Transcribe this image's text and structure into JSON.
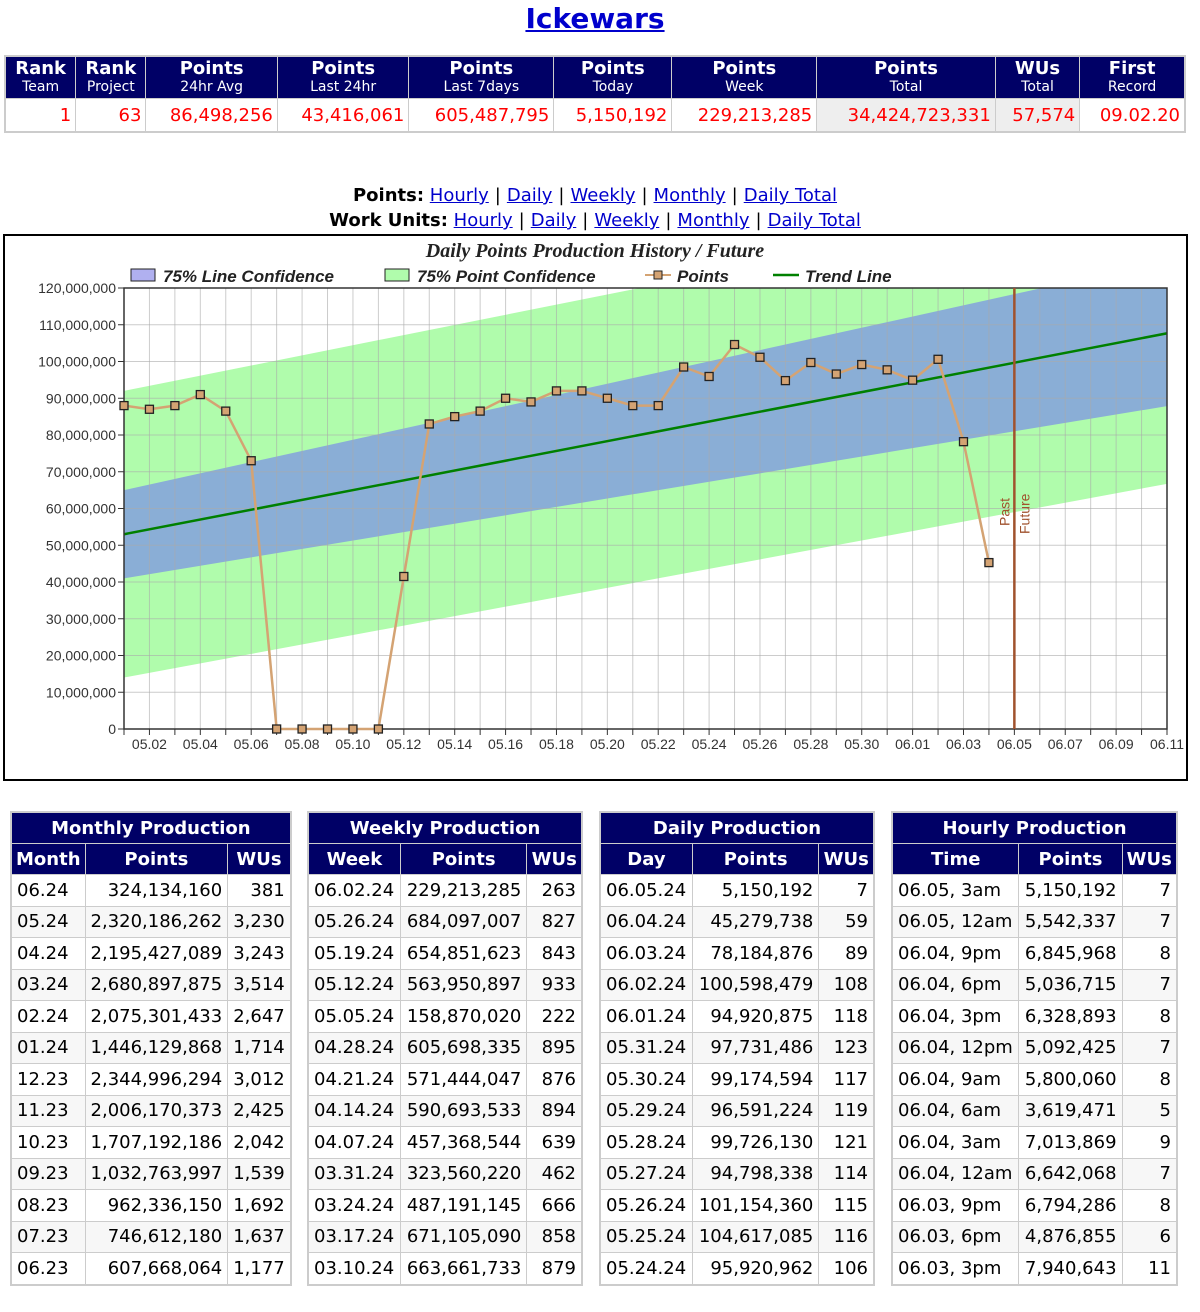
{
  "title": "Ickewars",
  "stats": {
    "headers": [
      [
        "Rank",
        "Team"
      ],
      [
        "Rank",
        "Project"
      ],
      [
        "Points",
        "24hr Avg"
      ],
      [
        "Points",
        "Last 24hr"
      ],
      [
        "Points",
        "Last 7days"
      ],
      [
        "Points",
        "Today"
      ],
      [
        "Points",
        "Week"
      ],
      [
        "Points",
        "Total"
      ],
      [
        "WUs",
        "Total"
      ],
      [
        "First",
        "Record"
      ]
    ],
    "values": [
      "1",
      "63",
      "86,498,256",
      "43,416,061",
      "605,487,795",
      "5,150,192",
      "229,213,285",
      "34,424,723,331",
      "57,574",
      "09.02.20"
    ]
  },
  "links": {
    "points_label": "Points:",
    "wu_label": "Work Units:",
    "items": [
      "Hourly",
      "Daily",
      "Weekly",
      "Monthly",
      "Daily Total"
    ],
    "sep": "|"
  },
  "chart_data": {
    "type": "line",
    "title": "Daily Points Production History / Future",
    "legend": [
      "75% Line Confidence",
      "75% Point Confidence",
      "Points",
      "Trend Line"
    ],
    "legend_placement": "top",
    "colors": {
      "line_conf": "#8aaed6",
      "line_conf_legend": "#b0b0f0",
      "point_conf": "#b0fcac",
      "points": "#d4a373",
      "trend": "#008000",
      "divider": "#a0522d"
    },
    "ylim": [
      0,
      120000000
    ],
    "yticks": [
      "0",
      "10,000,000",
      "20,000,000",
      "30,000,000",
      "40,000,000",
      "50,000,000",
      "60,000,000",
      "70,000,000",
      "80,000,000",
      "90,000,000",
      "100,000,000",
      "110,000,000",
      "120,000,000"
    ],
    "xrange": [
      "05.01",
      "06.12"
    ],
    "xtick_labels": [
      "05.02",
      "05.04",
      "05.06",
      "05.08",
      "05.10",
      "05.12",
      "05.14",
      "05.16",
      "05.18",
      "05.20",
      "05.22",
      "05.24",
      "05.26",
      "05.28",
      "05.30",
      "06.01",
      "06.03",
      "06.05",
      "06.07",
      "06.09",
      "06.11"
    ],
    "grid": true,
    "points": {
      "x": [
        "05.01",
        "05.02",
        "05.03",
        "05.04",
        "05.05",
        "05.06",
        "05.07",
        "05.08",
        "05.09",
        "05.10",
        "05.11",
        "05.12",
        "05.13",
        "05.14",
        "05.15",
        "05.16",
        "05.17",
        "05.18",
        "05.19",
        "05.20",
        "05.21",
        "05.22",
        "05.23",
        "05.24",
        "05.25",
        "05.26",
        "05.27",
        "05.28",
        "05.29",
        "05.30",
        "05.31",
        "06.01",
        "06.02",
        "06.03",
        "06.04"
      ],
      "y": [
        88000000,
        87000000,
        88000000,
        91000000,
        86500000,
        73000000,
        0,
        0,
        0,
        0,
        0,
        41500000,
        83000000,
        85000000,
        86500000,
        90000000,
        89000000,
        92000000,
        92000000,
        90000000,
        88000000,
        88000000,
        98500000,
        95920962,
        104617085,
        101154360,
        94798338,
        99726130,
        96591224,
        99174594,
        97731486,
        94920875,
        100598479,
        78184876,
        45279738
      ]
    },
    "trend_line": {
      "x": [
        "05.01",
        "06.12"
      ],
      "y": [
        53000000,
        109000000
      ]
    },
    "line_confidence": {
      "x": [
        "05.01",
        "06.12"
      ],
      "lower": [
        41000000,
        89000000
      ],
      "upper": [
        65000000,
        129000000
      ]
    },
    "point_confidence": {
      "x": [
        "05.01",
        "06.12"
      ],
      "lower": [
        14000000,
        68000000
      ],
      "upper": [
        92000000,
        150000000
      ]
    },
    "divider": {
      "x": "06.05",
      "labels": [
        "Past",
        "Future"
      ]
    }
  },
  "tables": [
    {
      "title": "Monthly Production",
      "headers": [
        "Month",
        "Points",
        "WUs"
      ],
      "rows": [
        [
          "06.24",
          "324,134,160",
          "381"
        ],
        [
          "05.24",
          "2,320,186,262",
          "3,230"
        ],
        [
          "04.24",
          "2,195,427,089",
          "3,243"
        ],
        [
          "03.24",
          "2,680,897,875",
          "3,514"
        ],
        [
          "02.24",
          "2,075,301,433",
          "2,647"
        ],
        [
          "01.24",
          "1,446,129,868",
          "1,714"
        ],
        [
          "12.23",
          "2,344,996,294",
          "3,012"
        ],
        [
          "11.23",
          "2,006,170,373",
          "2,425"
        ],
        [
          "10.23",
          "1,707,192,186",
          "2,042"
        ],
        [
          "09.23",
          "1,032,763,997",
          "1,539"
        ],
        [
          "08.23",
          "962,336,150",
          "1,692"
        ],
        [
          "07.23",
          "746,612,180",
          "1,637"
        ],
        [
          "06.23",
          "607,668,064",
          "1,177"
        ]
      ]
    },
    {
      "title": "Weekly Production",
      "headers": [
        "Week",
        "Points",
        "WUs"
      ],
      "rows": [
        [
          "06.02.24",
          "229,213,285",
          "263"
        ],
        [
          "05.26.24",
          "684,097,007",
          "827"
        ],
        [
          "05.19.24",
          "654,851,623",
          "843"
        ],
        [
          "05.12.24",
          "563,950,897",
          "933"
        ],
        [
          "05.05.24",
          "158,870,020",
          "222"
        ],
        [
          "04.28.24",
          "605,698,335",
          "895"
        ],
        [
          "04.21.24",
          "571,444,047",
          "876"
        ],
        [
          "04.14.24",
          "590,693,533",
          "894"
        ],
        [
          "04.07.24",
          "457,368,544",
          "639"
        ],
        [
          "03.31.24",
          "323,560,220",
          "462"
        ],
        [
          "03.24.24",
          "487,191,145",
          "666"
        ],
        [
          "03.17.24",
          "671,105,090",
          "858"
        ],
        [
          "03.10.24",
          "663,661,733",
          "879"
        ]
      ]
    },
    {
      "title": "Daily Production",
      "headers": [
        "Day",
        "Points",
        "WUs"
      ],
      "rows": [
        [
          "06.05.24",
          "5,150,192",
          "7"
        ],
        [
          "06.04.24",
          "45,279,738",
          "59"
        ],
        [
          "06.03.24",
          "78,184,876",
          "89"
        ],
        [
          "06.02.24",
          "100,598,479",
          "108"
        ],
        [
          "06.01.24",
          "94,920,875",
          "118"
        ],
        [
          "05.31.24",
          "97,731,486",
          "123"
        ],
        [
          "05.30.24",
          "99,174,594",
          "117"
        ],
        [
          "05.29.24",
          "96,591,224",
          "119"
        ],
        [
          "05.28.24",
          "99,726,130",
          "121"
        ],
        [
          "05.27.24",
          "94,798,338",
          "114"
        ],
        [
          "05.26.24",
          "101,154,360",
          "115"
        ],
        [
          "05.25.24",
          "104,617,085",
          "116"
        ],
        [
          "05.24.24",
          "95,920,962",
          "106"
        ]
      ]
    },
    {
      "title": "Hourly Production",
      "headers": [
        "Time",
        "Points",
        "WUs"
      ],
      "rows": [
        [
          "06.05, 3am",
          "5,150,192",
          "7"
        ],
        [
          "06.05, 12am",
          "5,542,337",
          "7"
        ],
        [
          "06.04, 9pm",
          "6,845,968",
          "8"
        ],
        [
          "06.04, 6pm",
          "5,036,715",
          "7"
        ],
        [
          "06.04, 3pm",
          "6,328,893",
          "8"
        ],
        [
          "06.04, 12pm",
          "5,092,425",
          "7"
        ],
        [
          "06.04, 9am",
          "5,800,060",
          "8"
        ],
        [
          "06.04, 6am",
          "3,619,471",
          "5"
        ],
        [
          "06.04, 3am",
          "7,013,869",
          "9"
        ],
        [
          "06.04, 12am",
          "6,642,068",
          "7"
        ],
        [
          "06.03, 9pm",
          "6,794,286",
          "8"
        ],
        [
          "06.03, 6pm",
          "4,876,855",
          "6"
        ],
        [
          "06.03, 3pm",
          "7,940,643",
          "11"
        ]
      ]
    }
  ]
}
